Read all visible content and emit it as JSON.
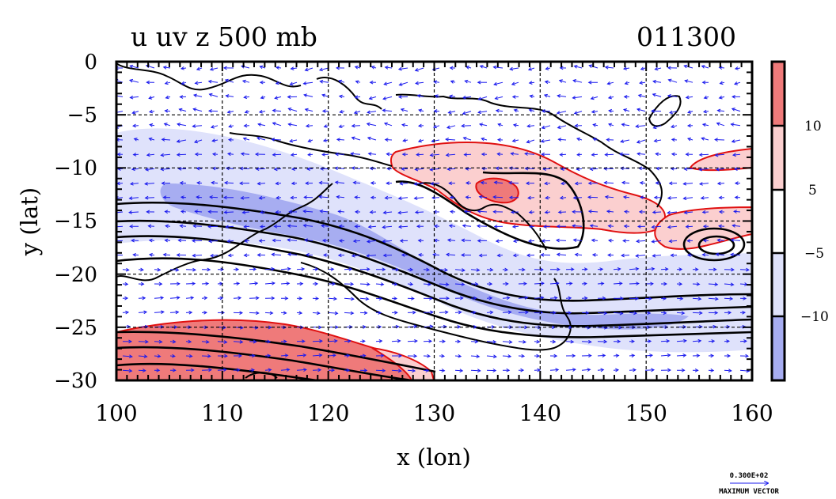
{
  "chart_data": {
    "type": "heatmap",
    "title": "u uv z 500 mb",
    "time_label": "011300",
    "xlabel": "x (lon)",
    "ylabel": "y (lat)",
    "xlim": [
      100,
      160
    ],
    "ylim": [
      -30,
      0
    ],
    "x_ticks": [
      "100",
      "110",
      "120",
      "130",
      "140",
      "150",
      "160"
    ],
    "y_ticks": [
      "0",
      "−5",
      "−10",
      "−15",
      "−20",
      "−25",
      "−30"
    ],
    "grid": true,
    "overlays": [
      "coastlines",
      "geopotential height contours (black)",
      "u-wind contours (red)",
      "wind vectors (blue)"
    ],
    "colorbar": {
      "position": "right",
      "tick_labels": [
        "10",
        "5",
        "−5",
        "−10"
      ],
      "levels": [
        {
          "range": "> 10",
          "color": "#ef7a7a"
        },
        {
          "range": "5 to 10",
          "color": "#fbcfcf"
        },
        {
          "range": "−5 to 5",
          "color": "#ffffff"
        },
        {
          "range": "−10 to −5",
          "color": "#dfe2fb"
        },
        {
          "range": "< −10",
          "color": "#a7adf1"
        }
      ]
    },
    "positive_regions": [
      {
        "label": "> 5",
        "lon": [
          126,
          154
        ],
        "lat": [
          -17,
          -8
        ]
      },
      {
        "label": "> 10",
        "lon": [
          134,
          138
        ],
        "lat": [
          -13,
          -11
        ]
      },
      {
        "label": "> 5",
        "lon": [
          151,
          160
        ],
        "lat": [
          -17,
          -9
        ]
      },
      {
        "label": "> 10",
        "lon": [
          100,
          124
        ],
        "lat": [
          -30,
          -25
        ]
      }
    ],
    "negative_regions": [
      {
        "label": "< −5",
        "lon": [
          100,
          160
        ],
        "lat": [
          -26,
          -6
        ]
      },
      {
        "label": "< −10",
        "lon": [
          104,
          148
        ],
        "lat": [
          -24,
          -10
        ]
      }
    ],
    "reference_vector": {
      "value": "0.300E+02",
      "label": "MAXIMUM VECTOR"
    },
    "colors": {
      "positive_contour": "#e01010",
      "negative_fill": "#a7adf1",
      "vector": "#1a1aee",
      "contour": "#000000"
    }
  }
}
